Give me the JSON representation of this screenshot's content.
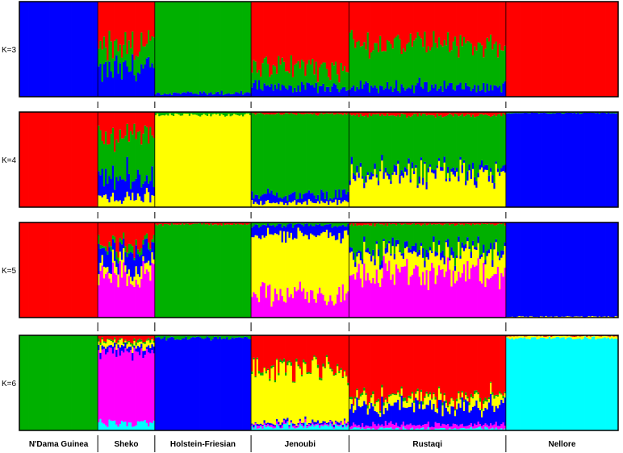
{
  "chart_data": {
    "type": "bar",
    "stacked": true,
    "populations": [
      {
        "name": "N'Dama Guinea",
        "n": 44
      },
      {
        "name": "Sheko",
        "n": 32
      },
      {
        "name": "Holstein-Friesian",
        "n": 54
      },
      {
        "name": "Jenoubi",
        "n": 55
      },
      {
        "name": "Rustaqi",
        "n": 88
      },
      {
        "name": "Nellore",
        "n": 63
      }
    ],
    "colors": {
      "red": "#ff0000",
      "green": "#00b000",
      "blue": "#0000ff",
      "yellow": "#ffff00",
      "magenta": "#ff00ff",
      "cyan": "#00ffff"
    },
    "panels": [
      {
        "label": "K=3",
        "stack_order": [
          "blue",
          "green",
          "red"
        ],
        "population_means": [
          {
            "blue": 1.0,
            "green": 0.0,
            "red": 0.0
          },
          {
            "blue": 0.28,
            "green": 0.25,
            "red": 0.47
          },
          {
            "blue": 0.04,
            "green": 0.96,
            "red": 0.0
          },
          {
            "blue": 0.1,
            "green": 0.22,
            "red": 0.68
          },
          {
            "blue": 0.1,
            "green": 0.45,
            "red": 0.45
          },
          {
            "blue": 0.0,
            "green": 0.0,
            "red": 1.0
          }
        ]
      },
      {
        "label": "K=4",
        "stack_order": [
          "yellow",
          "blue",
          "green",
          "red"
        ],
        "population_means": [
          {
            "yellow": 0.0,
            "blue": 0.0,
            "green": 0.0,
            "red": 1.0
          },
          {
            "yellow": 0.1,
            "blue": 0.2,
            "green": 0.45,
            "red": 0.25
          },
          {
            "yellow": 0.97,
            "blue": 0.0,
            "green": 0.03,
            "red": 0.0
          },
          {
            "yellow": 0.05,
            "blue": 0.08,
            "green": 0.85,
            "red": 0.02
          },
          {
            "yellow": 0.35,
            "blue": 0.05,
            "green": 0.57,
            "red": 0.03
          },
          {
            "yellow": 0.0,
            "blue": 0.99,
            "green": 0.01,
            "red": 0.0
          }
        ]
      },
      {
        "label": "K=5",
        "stack_order": [
          "magenta",
          "yellow",
          "blue",
          "green",
          "red"
        ],
        "population_means": [
          {
            "magenta": 0.0,
            "yellow": 0.0,
            "blue": 0.0,
            "green": 0.0,
            "red": 1.0
          },
          {
            "magenta": 0.45,
            "yellow": 0.1,
            "blue": 0.18,
            "green": 0.05,
            "red": 0.22
          },
          {
            "magenta": 0.0,
            "yellow": 0.0,
            "blue": 0.0,
            "green": 0.98,
            "red": 0.02
          },
          {
            "magenta": 0.25,
            "yellow": 0.62,
            "blue": 0.1,
            "green": 0.03,
            "red": 0.0
          },
          {
            "magenta": 0.45,
            "yellow": 0.22,
            "blue": 0.05,
            "green": 0.26,
            "red": 0.02
          },
          {
            "magenta": 0.0,
            "yellow": 0.01,
            "blue": 0.99,
            "green": 0.0,
            "red": 0.0
          }
        ]
      },
      {
        "label": "K=6",
        "stack_order": [
          "cyan",
          "magenta",
          "blue",
          "yellow",
          "green",
          "red"
        ],
        "population_means": [
          {
            "cyan": 0.0,
            "magenta": 0.0,
            "blue": 0.0,
            "yellow": 0.0,
            "green": 1.0,
            "red": 0.0
          },
          {
            "cyan": 0.08,
            "magenta": 0.75,
            "blue": 0.05,
            "yellow": 0.05,
            "green": 0.02,
            "red": 0.05
          },
          {
            "cyan": 0.0,
            "magenta": 0.0,
            "blue": 0.97,
            "yellow": 0.0,
            "green": 0.03,
            "red": 0.0
          },
          {
            "cyan": 0.04,
            "magenta": 0.02,
            "blue": 0.02,
            "yellow": 0.55,
            "green": 0.02,
            "red": 0.35
          },
          {
            "cyan": 0.02,
            "magenta": 0.04,
            "blue": 0.2,
            "yellow": 0.08,
            "green": 0.02,
            "red": 0.64
          },
          {
            "cyan": 0.97,
            "magenta": 0.0,
            "blue": 0.0,
            "yellow": 0.02,
            "green": 0.0,
            "red": 0.01
          }
        ]
      }
    ]
  }
}
